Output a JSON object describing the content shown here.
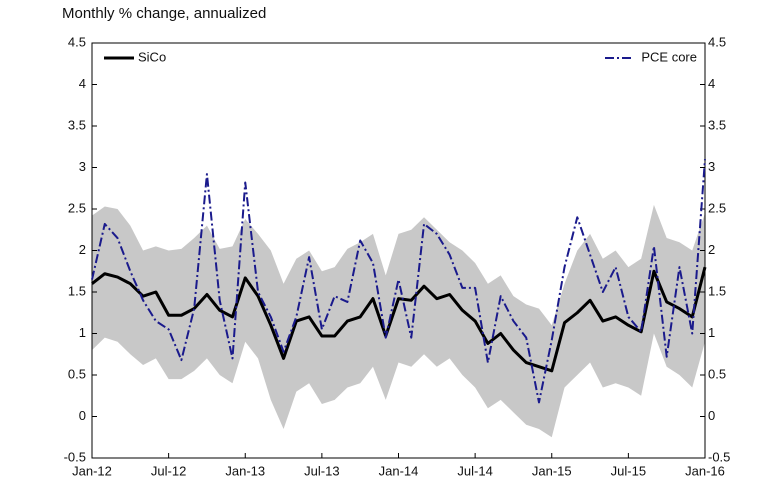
{
  "chart_data": {
    "type": "line",
    "title": "Monthly % change, annualized",
    "categories": [
      "Jan-12",
      null,
      null,
      null,
      null,
      null,
      "Jul-12",
      null,
      null,
      null,
      null,
      null,
      "Jan-13",
      null,
      null,
      null,
      null,
      null,
      "Jul-13",
      null,
      null,
      null,
      null,
      null,
      "Jan-14",
      null,
      null,
      null,
      null,
      null,
      "Jul-14",
      null,
      null,
      null,
      null,
      null,
      "Jan-15",
      null,
      null,
      null,
      null,
      null,
      "Jul-15",
      null,
      null,
      null,
      null,
      null,
      "Jan-16"
    ],
    "series": [
      {
        "name": "SiCo",
        "color": "#000000",
        "values": [
          1.6,
          1.72,
          1.68,
          1.6,
          1.45,
          1.5,
          1.22,
          1.22,
          1.3,
          1.47,
          1.28,
          1.2,
          1.67,
          1.45,
          1.1,
          0.7,
          1.15,
          1.2,
          0.97,
          0.97,
          1.15,
          1.2,
          1.42,
          0.97,
          1.42,
          1.4,
          1.57,
          1.42,
          1.47,
          1.28,
          1.15,
          0.88,
          1.0,
          0.8,
          0.65,
          0.6,
          0.55,
          1.13,
          1.25,
          1.4,
          1.15,
          1.2,
          1.1,
          1.02,
          1.75,
          1.38,
          1.3,
          1.2,
          1.8
        ]
      },
      {
        "name": "PCE core",
        "color": "#1a1a8c",
        "values": [
          1.65,
          2.32,
          2.15,
          1.75,
          1.4,
          1.15,
          1.05,
          0.68,
          1.3,
          2.92,
          1.4,
          0.7,
          2.82,
          1.5,
          1.2,
          0.78,
          1.2,
          1.92,
          1.05,
          1.45,
          1.38,
          2.12,
          1.85,
          0.95,
          1.65,
          0.95,
          2.32,
          2.2,
          1.95,
          1.55,
          1.55,
          0.65,
          1.45,
          1.15,
          0.95,
          0.17,
          0.92,
          1.8,
          2.4,
          1.95,
          1.5,
          1.8,
          1.2,
          1.02,
          2.05,
          0.72,
          1.8,
          1.0,
          3.1
        ]
      }
    ],
    "band": {
      "color": "#c8c8c8",
      "upper": [
        2.42,
        2.53,
        2.5,
        2.3,
        2.0,
        2.05,
        2.0,
        2.02,
        2.15,
        2.3,
        2.02,
        2.05,
        2.38,
        2.2,
        2.0,
        1.6,
        1.9,
        2.0,
        1.75,
        1.8,
        2.02,
        2.1,
        2.2,
        1.7,
        2.2,
        2.25,
        2.4,
        2.25,
        2.1,
        2.0,
        1.85,
        1.6,
        1.7,
        1.45,
        1.35,
        1.3,
        1.1,
        1.6,
        2.0,
        2.2,
        1.9,
        2.0,
        1.8,
        1.9,
        2.55,
        2.15,
        2.1,
        2.0,
        2.45
      ],
      "lower": [
        0.8,
        0.95,
        0.9,
        0.75,
        0.62,
        0.7,
        0.45,
        0.45,
        0.55,
        0.7,
        0.5,
        0.4,
        0.9,
        0.7,
        0.2,
        -0.15,
        0.3,
        0.4,
        0.15,
        0.2,
        0.35,
        0.4,
        0.6,
        0.2,
        0.65,
        0.6,
        0.75,
        0.6,
        0.7,
        0.5,
        0.35,
        0.1,
        0.2,
        0.05,
        -0.1,
        -0.15,
        -0.25,
        0.35,
        0.5,
        0.65,
        0.35,
        0.4,
        0.35,
        0.25,
        1.0,
        0.6,
        0.5,
        0.35,
        0.9
      ]
    },
    "ylim": [
      -0.5,
      4.5
    ],
    "yticks": [
      -0.5,
      0,
      0.5,
      1,
      1.5,
      2,
      2.5,
      3,
      3.5,
      4,
      4.5
    ],
    "y2lim": [
      -0.5,
      4.5
    ],
    "y2ticks": [
      -0.5,
      0,
      0.5,
      1,
      1.5,
      2,
      2.5,
      3,
      3.5,
      4,
      4.5
    ],
    "grid": false
  }
}
